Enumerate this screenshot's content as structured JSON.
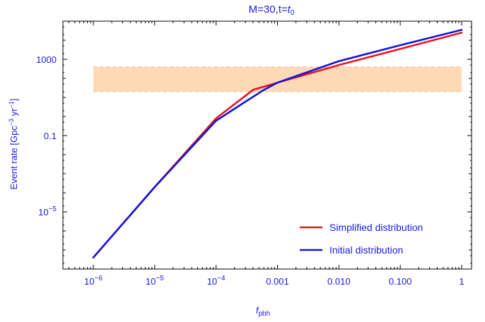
{
  "chart_data": {
    "type": "line",
    "title": "M=30,t=t0",
    "xlabel": "fpbh",
    "ylabel": "Event rate [Gpc⁻³ yr⁻¹]",
    "xscale": "log",
    "yscale": "log",
    "xlim": [
      3.2e-07,
      1.45
    ],
    "ylim": [
      1e-08,
      100000.0
    ],
    "x_tick_labels": [
      {
        "value": 1e-06,
        "base": "10",
        "exp": "−6"
      },
      {
        "value": 1e-05,
        "base": "10",
        "exp": "−5"
      },
      {
        "value": 0.0001,
        "base": "10",
        "exp": "−4"
      },
      {
        "value": 0.001,
        "base": "0.001",
        "exp": ""
      },
      {
        "value": 0.01,
        "base": "0.010",
        "exp": ""
      },
      {
        "value": 0.1,
        "base": "0.100",
        "exp": ""
      },
      {
        "value": 1,
        "base": "1",
        "exp": ""
      }
    ],
    "y_tick_labels": [
      {
        "value": 1e-05,
        "base": "10",
        "exp": "−5"
      },
      {
        "value": 0.1,
        "base": "0.1",
        "exp": ""
      },
      {
        "value": 1000,
        "base": "1000",
        "exp": ""
      }
    ],
    "band": {
      "y_range": [
        20,
        400
      ],
      "color": "#fdd9b5",
      "edge_color": "#f5b98a",
      "x_range": [
        1e-06,
        1
      ]
    },
    "series": [
      {
        "name": "Simplified distribution",
        "color": "#e8141c",
        "x": [
          1e-06,
          1e-05,
          0.0001,
          0.0004,
          0.001,
          0.01,
          0.1,
          1
        ],
        "y": [
          4e-08,
          0.0002,
          0.8,
          25,
          60,
          500,
          3500,
          25000
        ]
      },
      {
        "name": "Initial distribution",
        "color": "#1414d8",
        "x": [
          1e-06,
          1e-05,
          0.0001,
          0.0003,
          0.0006,
          0.001,
          0.01,
          0.1,
          1
        ],
        "y": [
          4e-08,
          0.0002,
          0.6,
          6,
          25,
          60,
          800,
          5500,
          35000
        ]
      }
    ],
    "legend": {
      "position": "bottom-right"
    },
    "grid": false
  }
}
